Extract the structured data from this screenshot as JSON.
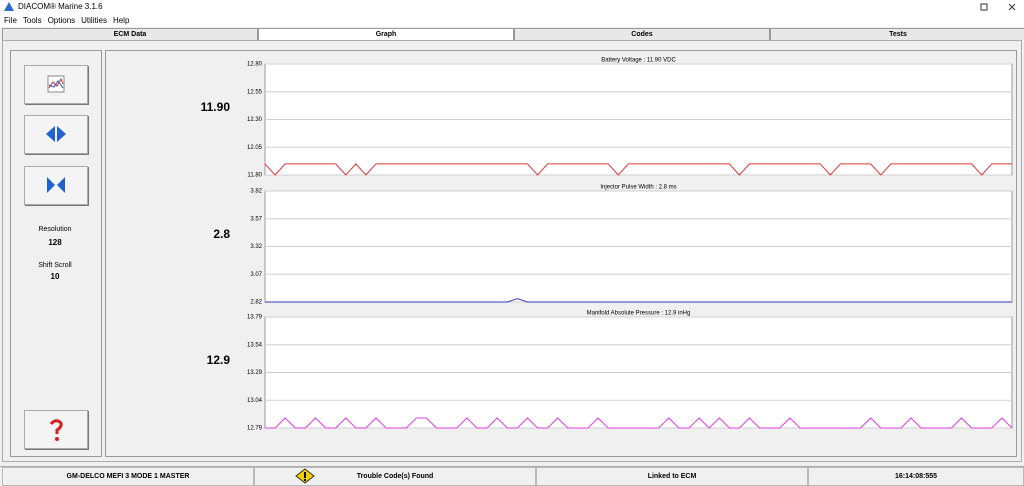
{
  "window": {
    "title": "DIACOM® Marine 3.1.6"
  },
  "menu": [
    "File",
    "Tools",
    "Options",
    "Utilities",
    "Help"
  ],
  "tabs": [
    "ECM Data",
    "Graph",
    "Codes",
    "Tests"
  ],
  "sidebar": {
    "resolution_label": "Resolution",
    "resolution": "128",
    "shift_label": "Shift Scroll",
    "shift": "10"
  },
  "graphs": [
    {
      "title": "Battery Voltage : 11.90 VDC",
      "current": "11.90",
      "color": "#e03a3a",
      "ylim": [
        11.8,
        12.8
      ],
      "yticks": [
        {
          "value": 12.8,
          "label": "12.80"
        },
        {
          "value": 12.55,
          "label": "12.55"
        },
        {
          "value": 12.3,
          "label": "12.30"
        },
        {
          "value": 12.05,
          "label": "12.05"
        },
        {
          "value": 11.8,
          "label": "11.80"
        }
      ],
      "values": [
        11.9,
        11.8,
        11.9,
        11.9,
        11.9,
        11.9,
        11.9,
        11.9,
        11.8,
        11.9,
        11.8,
        11.9,
        11.9,
        11.9,
        11.9,
        11.9,
        11.9,
        11.9,
        11.9,
        11.9,
        11.9,
        11.9,
        11.9,
        11.9,
        11.9,
        11.9,
        11.9,
        11.8,
        11.9,
        11.9,
        11.9,
        11.9,
        11.9,
        11.9,
        11.9,
        11.8,
        11.9,
        11.9,
        11.9,
        11.9,
        11.9,
        11.9,
        11.9,
        11.9,
        11.9,
        11.9,
        11.9,
        11.8,
        11.9,
        11.9,
        11.9,
        11.9,
        11.9,
        11.9,
        11.9,
        11.9,
        11.8,
        11.9,
        11.9,
        11.9,
        11.9,
        11.8,
        11.9,
        11.9,
        11.9,
        11.9,
        11.9,
        11.9,
        11.9,
        11.9,
        11.9,
        11.8,
        11.9,
        11.9,
        11.9
      ]
    },
    {
      "title": "Injector Pulse Width : 2.8 ms",
      "current": "2.8",
      "color": "#3a3ac0",
      "ylim": [
        2.82,
        3.82
      ],
      "yticks": [
        3.82,
        3.57,
        3.32,
        3.07,
        2.82
      ],
      "values": [
        2.82,
        2.82,
        2.82,
        2.82,
        2.82,
        2.82,
        2.82,
        2.82,
        2.82,
        2.82,
        2.82,
        2.82,
        2.82,
        2.82,
        2.82,
        2.82,
        2.82,
        2.82,
        2.82,
        2.82,
        2.82,
        2.82,
        2.82,
        2.82,
        2.82,
        2.85,
        2.82,
        2.82,
        2.82,
        2.82,
        2.82,
        2.82,
        2.82,
        2.82,
        2.82,
        2.82,
        2.82,
        2.82,
        2.82,
        2.82,
        2.82,
        2.82,
        2.82,
        2.82,
        2.82,
        2.82,
        2.82,
        2.82,
        2.82,
        2.82,
        2.82,
        2.82,
        2.82,
        2.82,
        2.82,
        2.82,
        2.82,
        2.82,
        2.82,
        2.82,
        2.82,
        2.82,
        2.82,
        2.82,
        2.82,
        2.82,
        2.82,
        2.82,
        2.82,
        2.82,
        2.82,
        2.82,
        2.82,
        2.82,
        2.82
      ]
    },
    {
      "title": "Manifold Absolute Pressure : 12.9 inHg",
      "current": "12.9",
      "color": "#e040e0",
      "ylim": [
        12.79,
        13.79
      ],
      "yticks": [
        13.79,
        13.54,
        13.29,
        13.04,
        12.79
      ],
      "values": [
        12.79,
        12.79,
        12.88,
        12.79,
        12.79,
        12.88,
        12.79,
        12.79,
        12.88,
        12.79,
        12.79,
        12.88,
        12.79,
        12.79,
        12.79,
        12.88,
        12.88,
        12.79,
        12.79,
        12.79,
        12.88,
        12.79,
        12.79,
        12.88,
        12.79,
        12.79,
        12.88,
        12.79,
        12.79,
        12.88,
        12.79,
        12.79,
        12.79,
        12.88,
        12.79,
        12.79,
        12.79,
        12.79,
        12.79,
        12.79,
        12.88,
        12.79,
        12.79,
        12.88,
        12.79,
        12.88,
        12.79,
        12.79,
        12.88,
        12.79,
        12.79,
        12.79,
        12.88,
        12.79,
        12.79,
        12.79,
        12.79,
        12.79,
        12.79,
        12.79,
        12.88,
        12.79,
        12.79,
        12.79,
        12.88,
        12.79,
        12.79,
        12.79,
        12.79,
        12.88,
        12.79,
        12.79,
        12.79,
        12.88,
        12.79
      ]
    }
  ],
  "status": [
    "GM-DELCO MEFI 3 MODE 1 MASTER",
    "Trouble Code(s) Found",
    "Linked to ECM",
    "16:14:08:555"
  ]
}
